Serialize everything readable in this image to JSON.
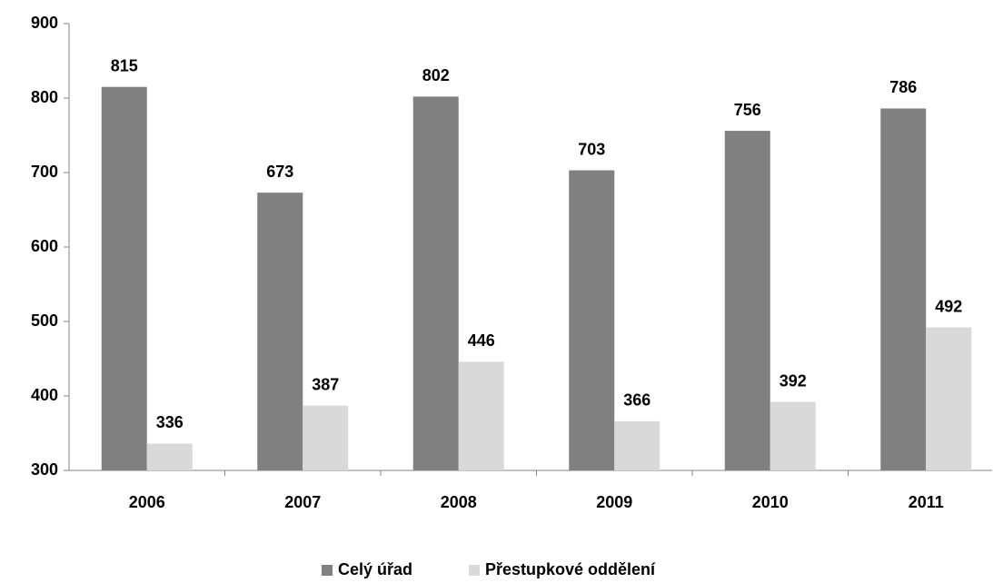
{
  "chart_data": {
    "type": "bar",
    "categories": [
      "2006",
      "2007",
      "2008",
      "2009",
      "2010",
      "2011"
    ],
    "series": [
      {
        "name": "Celý úřad",
        "color": "#808080",
        "values": [
          815,
          673,
          802,
          703,
          756,
          786
        ]
      },
      {
        "name": "Přestupkové oddělení",
        "color": "#d9d9d9",
        "values": [
          336,
          387,
          446,
          366,
          392,
          492
        ]
      }
    ],
    "ylim": [
      300,
      900
    ],
    "yticks": [
      300,
      400,
      500,
      600,
      700,
      800,
      900
    ],
    "grid": false,
    "legend": "bottom"
  }
}
